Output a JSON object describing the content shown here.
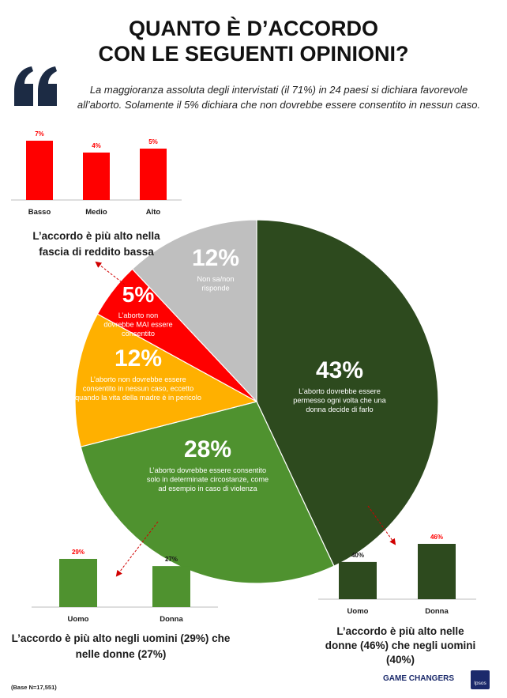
{
  "title_line1": "QUANTO È D’ACCORDO",
  "title_line2": "CON LE SEGUENTI OPINIONI?",
  "quote": "La maggioranza assoluta degli intervistati (il 71%) in 24 paesi si dichiara favorevole all’aborto. Solamente il 5% dichiara che non dovrebbe essere consentito in nessun caso.",
  "base_note": "(Base N=17,551)",
  "brand": "GAME CHANGERS",
  "logo_text": "Ipsos",
  "colors": {
    "dark_green": "#2d4a1e",
    "mid_green": "#4f922f",
    "orange": "#ffb000",
    "red": "#ff0000",
    "grey": "#bfbfbf"
  },
  "chart_data": [
    {
      "type": "pie",
      "slices": [
        {
          "value": 43,
          "label": "43%",
          "text": [
            "L’aborto dovrebbe essere",
            "permesso ogni volta che una",
            "donna decide di farlo"
          ],
          "color": "#2d4a1e"
        },
        {
          "value": 28,
          "label": "28%",
          "text": [
            "L’aborto dovrebbe essere consentito",
            "solo in determinate circostanze, come",
            "ad esempio in caso di violenza"
          ],
          "color": "#4f922f"
        },
        {
          "value": 12,
          "label": "12%",
          "text": [
            "L’aborto non dovrebbe essere",
            "consentito in nessun caso, eccetto",
            "quando la vita della madre è in pericolo"
          ],
          "color": "#ffb000"
        },
        {
          "value": 5,
          "label": "5%",
          "text": [
            "L’aborto non",
            "dovrebbe MAI essere",
            "consentito"
          ],
          "color": "#ff0000"
        },
        {
          "value": 12,
          "label": "12%",
          "text": [
            "Non sa/non",
            "risponde"
          ],
          "color": "#bfbfbf"
        }
      ]
    },
    {
      "type": "bar",
      "categories": [
        "Basso",
        "Medio",
        "Alto"
      ],
      "values": [
        7,
        4,
        5
      ],
      "value_labels": [
        "7%",
        "4%",
        "5%"
      ],
      "color": "#ff0000",
      "ylim": [
        0,
        7
      ],
      "caption": [
        "L’accordo è più alto nella",
        "fascia di reddito bassa"
      ]
    },
    {
      "type": "bar",
      "categories": [
        "Uomo",
        "Donna"
      ],
      "values": [
        29,
        27
      ],
      "value_labels": [
        "29%",
        "27%"
      ],
      "color": "#4f922f",
      "ylim": [
        20,
        29
      ],
      "caption": [
        "L’accordo è più alto negli  uomini (29%) che",
        "nelle donne (27%)"
      ]
    },
    {
      "type": "bar",
      "categories": [
        "Uomo",
        "Donna"
      ],
      "values": [
        40,
        46
      ],
      "value_labels": [
        "40%",
        "46%"
      ],
      "color": "#2d4a1e",
      "ylim": [
        35,
        46
      ],
      "caption": [
        "L’accordo è più alto nelle",
        "donne (46%) che negli uomini",
        "(40%)"
      ]
    }
  ]
}
